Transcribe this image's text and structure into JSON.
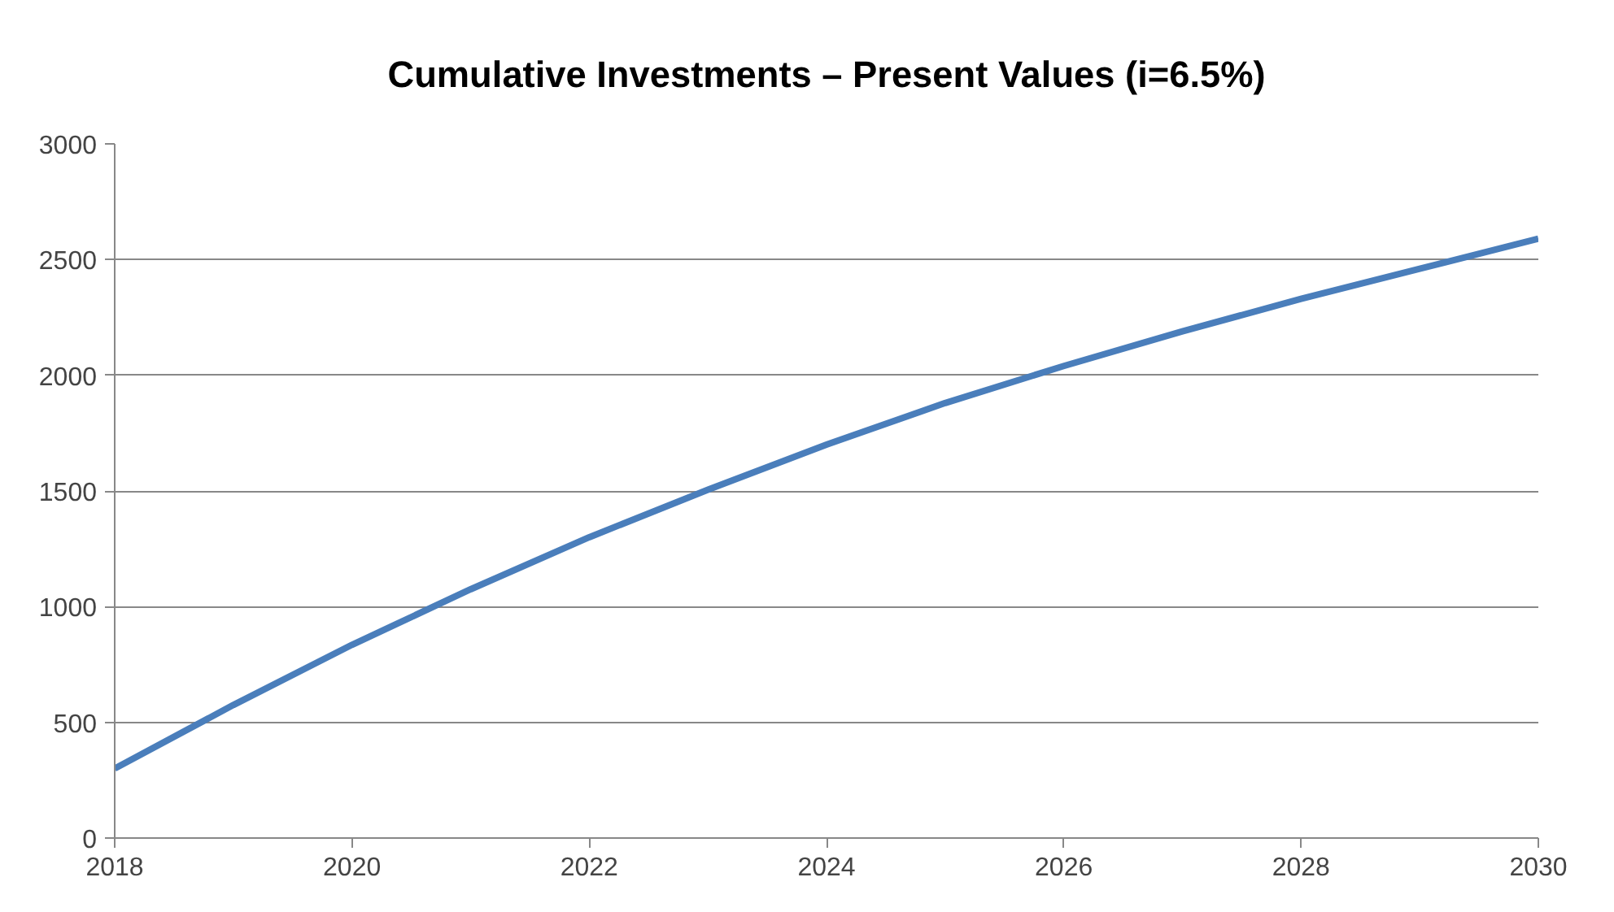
{
  "chart_data": {
    "type": "line",
    "title": "Cumulative Investments – Present Values (i=6.5%)",
    "x": [
      2018,
      2019,
      2020,
      2021,
      2022,
      2023,
      2024,
      2025,
      2026,
      2027,
      2028,
      2029,
      2030
    ],
    "series": [
      {
        "color": "#4a7ebb",
        "values": [
          300,
          575,
          835,
          1075,
          1300,
          1505,
          1700,
          1880,
          2040,
          2190,
          2330,
          2460,
          2590
        ]
      }
    ],
    "xlim": [
      2018,
      2030
    ],
    "xticks": [
      2018,
      2020,
      2022,
      2024,
      2026,
      2028,
      2030
    ],
    "ylim": [
      0,
      3000
    ],
    "yticks": [
      0,
      500,
      1000,
      1500,
      2000,
      2500,
      3000
    ],
    "grid": "y",
    "marker": "none",
    "line_style": "solid"
  }
}
